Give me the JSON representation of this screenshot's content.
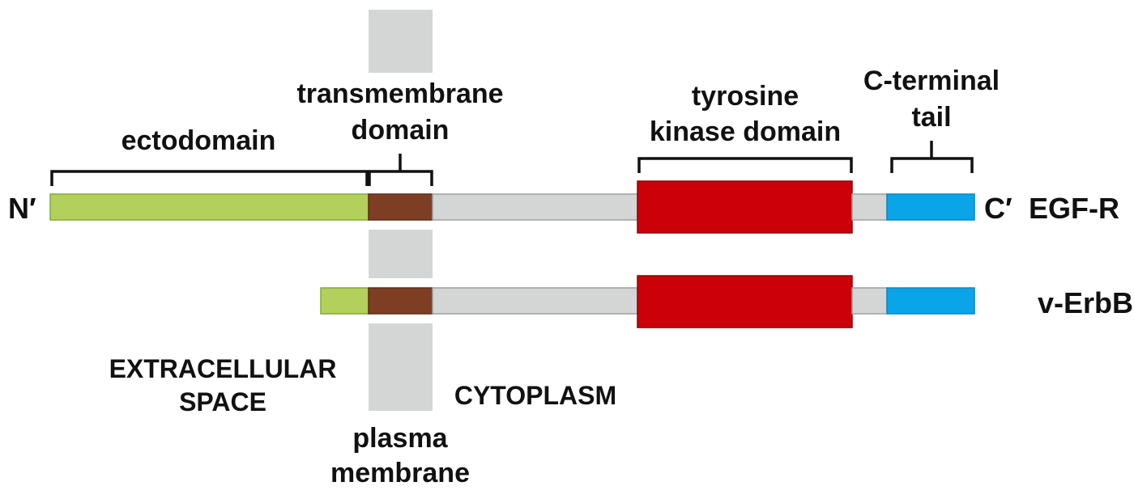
{
  "labels": {
    "ectodomain": "ectodomain",
    "transmembrane_1": "transmembrane",
    "transmembrane_2": "domain",
    "kinase_1": "tyrosine",
    "kinase_2": "kinase domain",
    "tail_1": "C-terminal",
    "tail_2": "tail",
    "n_term": "N′",
    "c_term": "C′",
    "egfr": "EGF-R",
    "verbb": "v-ErbB",
    "extracellular_1": "EXTRACELLULAR",
    "extracellular_2": "SPACE",
    "cytoplasm": "CYTOPLASM",
    "membrane_1": "plasma",
    "membrane_2": "membrane"
  },
  "colors": {
    "ectodomain": "#b2d05b",
    "transmembrane": "#7e3e24",
    "linker": "#d3d6d4",
    "kinase": "#cc0008",
    "tail": "#0aa5e8",
    "membrane": "#d3d6d4"
  }
}
